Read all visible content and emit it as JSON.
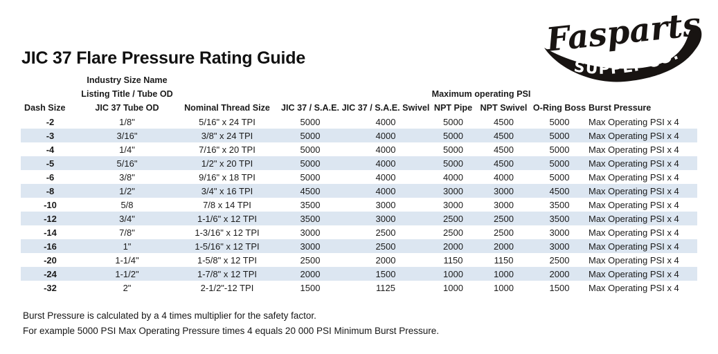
{
  "page": {
    "title": "JIC 37 Flare Pressure Rating Guide"
  },
  "logo": {
    "wordmark": "Fasparts",
    "subtitle": "SUPPLY CO.",
    "color": "#181412"
  },
  "table": {
    "group_headers": {
      "industry_line1": "Industry Size Name",
      "industry_line2": "Listing Title / Tube OD",
      "max_psi": "Maximum operating PSI"
    },
    "columns": [
      "Dash Size",
      "JIC 37 Tube OD",
      "Nominal Thread Size",
      "JIC 37 / S.A.E.",
      "JIC 37 / S.A.E. Swivel",
      "NPT Pipe",
      "NPT Swivel",
      "O-Ring Boss",
      "Burst Pressure"
    ],
    "rows": [
      [
        "-2",
        "1/8\"",
        "5/16\" x 24 TPI",
        "5000",
        "4000",
        "5000",
        "4500",
        "5000",
        "Max Operating PSI x 4"
      ],
      [
        "-3",
        "3/16\"",
        "3/8\" x 24 TPI",
        "5000",
        "4000",
        "5000",
        "4500",
        "5000",
        "Max Operating PSI x 4"
      ],
      [
        "-4",
        "1/4\"",
        "7/16\" x 20 TPI",
        "5000",
        "4000",
        "5000",
        "4500",
        "5000",
        "Max Operating PSI x 4"
      ],
      [
        "-5",
        "5/16\"",
        "1/2\" x 20 TPI",
        "5000",
        "4000",
        "5000",
        "4500",
        "5000",
        "Max Operating PSI x 4"
      ],
      [
        "-6",
        "3/8\"",
        "9/16\" x 18 TPI",
        "5000",
        "4000",
        "4000",
        "4000",
        "5000",
        "Max Operating PSI x 4"
      ],
      [
        "-8",
        "1/2\"",
        "3/4\" x 16 TPI",
        "4500",
        "4000",
        "3000",
        "3000",
        "4500",
        "Max Operating PSI x 4"
      ],
      [
        "-10",
        "5/8",
        "7/8 x 14 TPI",
        "3500",
        "3000",
        "3000",
        "3000",
        "3500",
        "Max Operating PSI x 4"
      ],
      [
        "-12",
        "3/4\"",
        "1-1/6\" x 12 TPI",
        "3500",
        "3000",
        "2500",
        "2500",
        "3500",
        "Max Operating PSI x 4"
      ],
      [
        "-14",
        "7/8\"",
        "1-3/16\" x 12 TPI",
        "3000",
        "2500",
        "2500",
        "2500",
        "3000",
        "Max Operating PSI x 4"
      ],
      [
        "-16",
        "1\"",
        "1-5/16\" x 12 TPI",
        "3000",
        "2500",
        "2000",
        "2000",
        "3000",
        "Max Operating PSI x 4"
      ],
      [
        "-20",
        "1-1/4\"",
        "1-5/8\" x 12 TPI",
        "2500",
        "2000",
        "1150",
        "1150",
        "2500",
        "Max Operating PSI x 4"
      ],
      [
        "-24",
        "1-1/2\"",
        "1-7/8\" x 12 TPI",
        "2000",
        "1500",
        "1000",
        "1000",
        "2000",
        "Max Operating PSI x 4"
      ],
      [
        "-32",
        "2\"",
        "2-1/2\"-12 TPI",
        "1500",
        "1125",
        "1000",
        "1000",
        "1500",
        "Max Operating PSI x 4"
      ]
    ]
  },
  "footer": {
    "line1": "Burst Pressure is calculated by a 4 times multiplier for the safety factor.",
    "line2": "For example 5000 PSI Max Operating Pressure times 4 equals 20 000 PSI Minimum Burst Pressure."
  },
  "colors": {
    "band": "#dce6f1",
    "text": "#1a1a1a"
  }
}
